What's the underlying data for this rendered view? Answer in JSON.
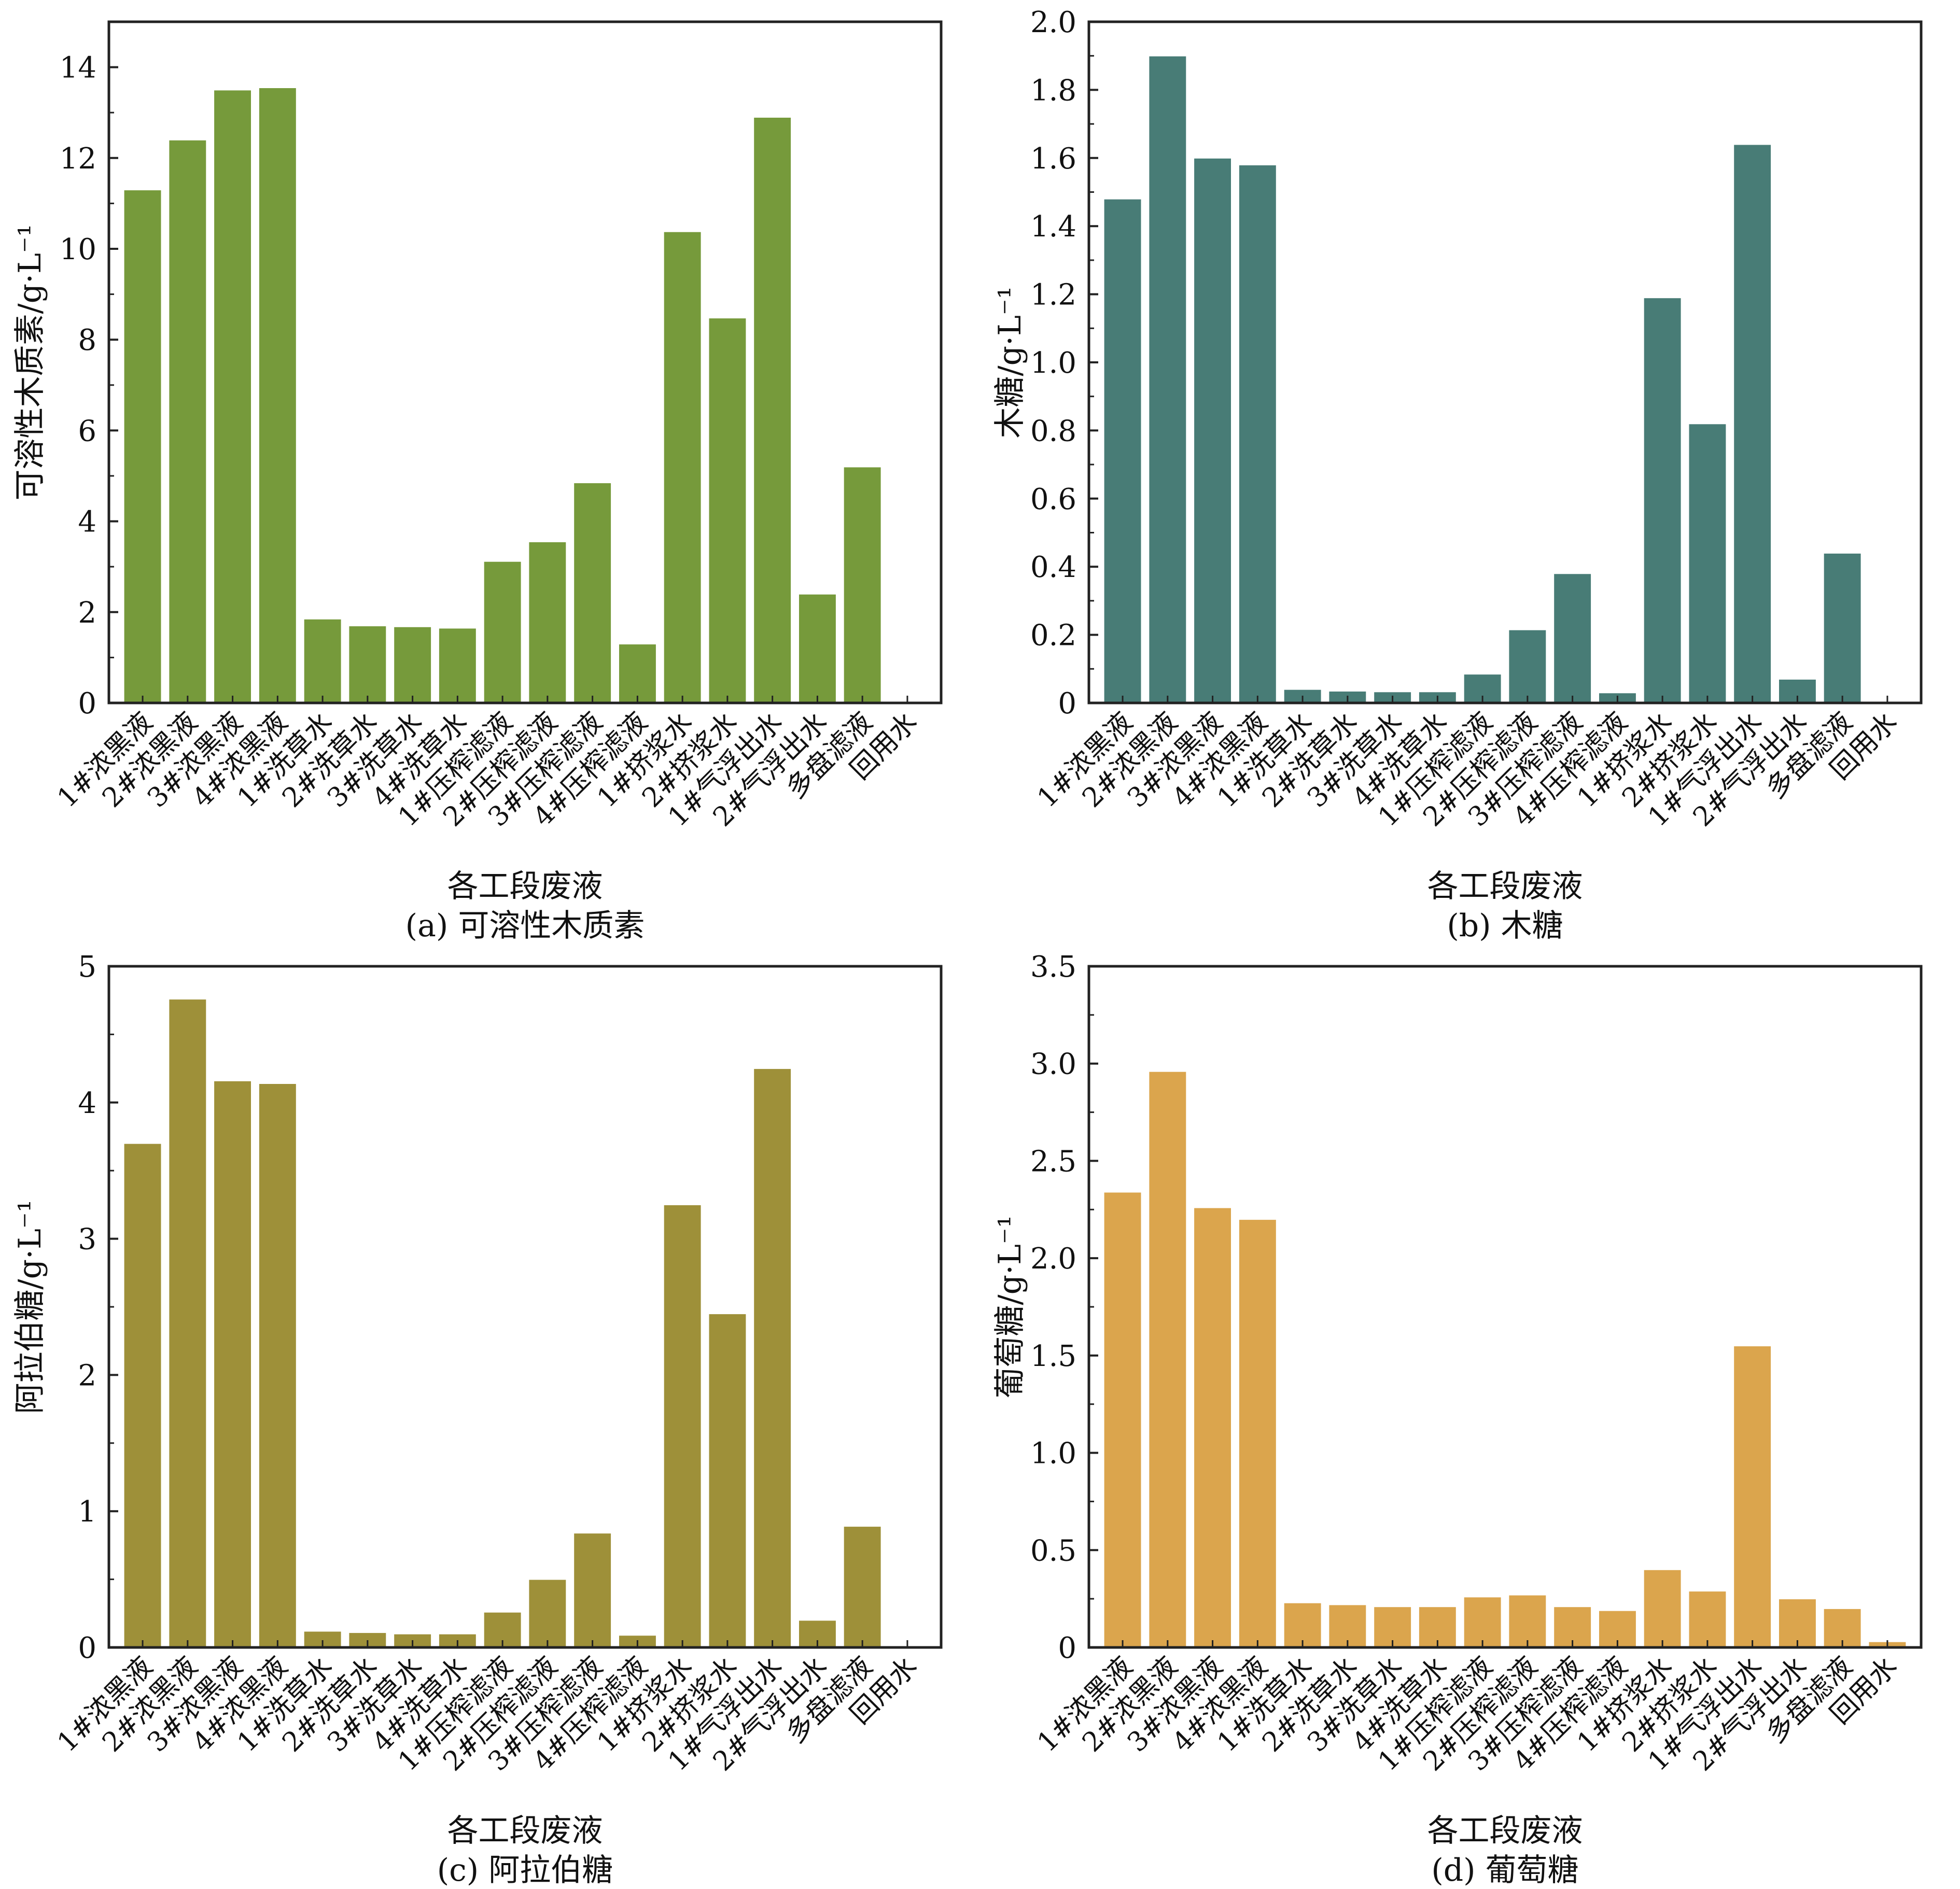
{
  "figure": {
    "categories": [
      "1#浓黑液",
      "2#浓黑液",
      "3#浓黑液",
      "4#浓黑液",
      "1#洗草水",
      "2#洗草水",
      "3#洗草水",
      "4#洗草水",
      "1#压榨滤液",
      "2#压榨滤液",
      "3#压榨滤液",
      "4#压榨滤液",
      "1#挤浆水",
      "2#挤浆水",
      "1#气浮出水",
      "2#气浮出水",
      "多盘滤液",
      "回用水"
    ],
    "xlabel": "各工段废液"
  },
  "chart_data": [
    {
      "id": "a",
      "type": "bar",
      "caption": "(a) 可溶性木质素",
      "ylabel": "可溶性木质素/g·L⁻¹",
      "xlabel": "各工段废液",
      "color": "#769a3b",
      "ylim": [
        0,
        15
      ],
      "yticks": [
        0,
        2,
        4,
        6,
        8,
        10,
        12,
        14
      ],
      "ytick_labels": [
        "0",
        "2",
        "4",
        "6",
        "8",
        "10",
        "12",
        "14"
      ],
      "values": [
        11.3,
        12.4,
        13.5,
        13.55,
        1.85,
        1.7,
        1.68,
        1.65,
        3.12,
        3.55,
        4.85,
        1.3,
        10.38,
        8.48,
        12.9,
        2.4,
        5.2,
        0.04
      ]
    },
    {
      "id": "b",
      "type": "bar",
      "caption": "(b) 木糖",
      "ylabel": "木糖/g·L⁻¹",
      "xlabel": "各工段废液",
      "color": "#487c76",
      "ylim": [
        0,
        2.0
      ],
      "yticks": [
        0,
        0.2,
        0.4,
        0.6,
        0.8,
        1.0,
        1.2,
        1.4,
        1.6,
        1.8,
        2.0
      ],
      "ytick_labels": [
        "0",
        "0.2",
        "0.4",
        "0.6",
        "0.8",
        "1.0",
        "1.2",
        "1.4",
        "1.6",
        "1.8",
        "2.0"
      ],
      "values": [
        1.48,
        1.9,
        1.6,
        1.58,
        0.04,
        0.035,
        0.033,
        0.033,
        0.085,
        0.215,
        0.38,
        0.03,
        1.19,
        0.82,
        1.64,
        0.07,
        0.44,
        0.004
      ]
    },
    {
      "id": "c",
      "type": "bar",
      "caption": "(c) 阿拉伯糖",
      "ylabel": "阿拉伯糖/g·L⁻¹",
      "xlabel": "各工段废液",
      "color": "#9e9039",
      "ylim": [
        0,
        5
      ],
      "yticks": [
        0,
        1,
        2,
        3,
        4,
        5
      ],
      "ytick_labels": [
        "0",
        "1",
        "2",
        "3",
        "4",
        "5"
      ],
      "values": [
        3.7,
        4.76,
        4.16,
        4.14,
        0.12,
        0.11,
        0.1,
        0.1,
        0.26,
        0.5,
        0.84,
        0.09,
        3.25,
        2.45,
        4.25,
        0.2,
        0.89,
        0.01
      ]
    },
    {
      "id": "d",
      "type": "bar",
      "caption": "(d) 葡萄糖",
      "ylabel": "葡萄糖/g·L⁻¹",
      "xlabel": "各工段废液",
      "color": "#dba54d",
      "ylim": [
        0,
        3.5
      ],
      "yticks": [
        0,
        0.5,
        1.0,
        1.5,
        2.0,
        2.5,
        3.0,
        3.5
      ],
      "ytick_labels": [
        "0",
        "0.5",
        "1.0",
        "1.5",
        "2.0",
        "2.5",
        "3.0",
        "3.5"
      ],
      "values": [
        2.34,
        2.96,
        2.26,
        2.2,
        0.23,
        0.22,
        0.21,
        0.21,
        0.26,
        0.27,
        0.21,
        0.19,
        0.4,
        0.29,
        1.55,
        0.25,
        0.2,
        0.03
      ]
    }
  ]
}
